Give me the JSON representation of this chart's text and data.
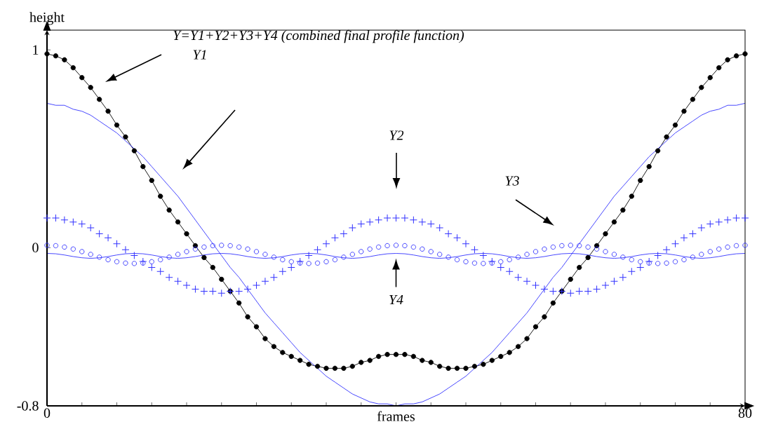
{
  "chart_data": {
    "type": "line",
    "xlabel": "frames",
    "ylabel": "height",
    "xlim": [
      0,
      80
    ],
    "ylim": [
      -0.8,
      1.1
    ],
    "xticks": [
      0,
      {
        "value": 4,
        "label": null
      },
      {
        "value": 8,
        "label": null
      },
      {
        "value": 12,
        "label": null
      },
      {
        "value": 16,
        "label": null
      },
      {
        "value": 20,
        "label": null
      },
      {
        "value": 24,
        "label": null
      },
      {
        "value": 28,
        "label": null
      },
      {
        "value": 32,
        "label": null
      },
      {
        "value": 36,
        "label": null
      },
      {
        "value": 40,
        "label": null
      },
      {
        "value": 44,
        "label": null
      },
      {
        "value": 48,
        "label": null
      },
      {
        "value": 52,
        "label": null
      },
      {
        "value": 56,
        "label": null
      },
      {
        "value": 60,
        "label": null
      },
      {
        "value": 64,
        "label": null
      },
      {
        "value": 68,
        "label": null
      },
      {
        "value": 72,
        "label": null
      },
      {
        "value": 76,
        "label": null
      },
      80
    ],
    "yticks": [
      -0.8,
      0,
      1
    ],
    "x": [
      0,
      1,
      2,
      3,
      4,
      5,
      6,
      7,
      8,
      9,
      10,
      11,
      12,
      13,
      14,
      15,
      16,
      17,
      18,
      19,
      20,
      21,
      22,
      23,
      24,
      25,
      26,
      27,
      28,
      29,
      30,
      31,
      32,
      33,
      34,
      35,
      36,
      37,
      38,
      39,
      40,
      41,
      42,
      43,
      44,
      45,
      46,
      47,
      48,
      49,
      50,
      51,
      52,
      53,
      54,
      55,
      56,
      57,
      58,
      59,
      60,
      61,
      62,
      63,
      64,
      65,
      66,
      67,
      68,
      69,
      70,
      71,
      72,
      73,
      74,
      75,
      76,
      77,
      78,
      79,
      80
    ],
    "series": [
      {
        "type": "line",
        "color": "#000000",
        "marker": "circle",
        "values": [
          0.98,
          0.97,
          0.95,
          0.91,
          0.86,
          0.81,
          0.75,
          0.69,
          0.62,
          0.56,
          0.49,
          0.41,
          0.34,
          0.26,
          0.19,
          0.13,
          0.07,
          0.01,
          -0.05,
          -0.1,
          -0.16,
          -0.22,
          -0.28,
          -0.35,
          -0.4,
          -0.46,
          -0.5,
          -0.53,
          -0.55,
          -0.57,
          -0.59,
          -0.6,
          -0.61,
          -0.61,
          -0.61,
          -0.6,
          -0.58,
          -0.57,
          -0.55,
          -0.54,
          -0.54,
          -0.54,
          -0.55,
          -0.57,
          -0.58,
          -0.6,
          -0.61,
          -0.61,
          -0.61,
          -0.6,
          -0.59,
          -0.57,
          -0.55,
          -0.53,
          -0.5,
          -0.46,
          -0.4,
          -0.35,
          -0.28,
          -0.22,
          -0.16,
          -0.1,
          -0.05,
          0.01,
          0.07,
          0.13,
          0.19,
          0.26,
          0.34,
          0.41,
          0.49,
          0.56,
          0.62,
          0.69,
          0.75,
          0.81,
          0.86,
          0.91,
          0.95,
          0.97,
          0.98
        ]
      },
      {
        "type": "line",
        "color": "#3333ff",
        "marker": "none",
        "values": [
          0.73,
          0.72,
          0.72,
          0.7,
          0.69,
          0.67,
          0.64,
          0.61,
          0.58,
          0.54,
          0.5,
          0.46,
          0.41,
          0.36,
          0.31,
          0.26,
          0.2,
          0.14,
          0.08,
          0.02,
          -0.04,
          -0.1,
          -0.15,
          -0.21,
          -0.27,
          -0.33,
          -0.38,
          -0.43,
          -0.48,
          -0.53,
          -0.57,
          -0.61,
          -0.65,
          -0.68,
          -0.71,
          -0.74,
          -0.76,
          -0.78,
          -0.79,
          -0.79,
          -0.8,
          -0.79,
          -0.79,
          -0.78,
          -0.76,
          -0.74,
          -0.71,
          -0.68,
          -0.65,
          -0.61,
          -0.57,
          -0.53,
          -0.48,
          -0.43,
          -0.38,
          -0.33,
          -0.27,
          -0.21,
          -0.15,
          -0.1,
          -0.04,
          0.02,
          0.08,
          0.14,
          0.2,
          0.26,
          0.31,
          0.36,
          0.41,
          0.46,
          0.5,
          0.54,
          0.58,
          0.61,
          0.64,
          0.67,
          0.69,
          0.7,
          0.72,
          0.72,
          0.73
        ]
      },
      {
        "type": "scatter",
        "color": "#3333ff",
        "marker": "cross",
        "values": [
          0.15,
          0.15,
          0.14,
          0.13,
          0.12,
          0.1,
          0.07,
          0.05,
          0.02,
          -0.01,
          -0.04,
          -0.07,
          -0.1,
          -0.12,
          -0.15,
          -0.17,
          -0.19,
          -0.21,
          -0.22,
          -0.22,
          -0.23,
          -0.22,
          -0.22,
          -0.21,
          -0.19,
          -0.17,
          -0.15,
          -0.12,
          -0.1,
          -0.07,
          -0.04,
          -0.01,
          0.02,
          0.05,
          0.07,
          0.1,
          0.12,
          0.13,
          0.14,
          0.15,
          0.15,
          0.15,
          0.14,
          0.13,
          0.12,
          0.1,
          0.07,
          0.05,
          0.02,
          -0.01,
          -0.04,
          -0.07,
          -0.1,
          -0.12,
          -0.15,
          -0.17,
          -0.19,
          -0.21,
          -0.22,
          -0.22,
          -0.23,
          -0.22,
          -0.22,
          -0.21,
          -0.19,
          -0.17,
          -0.15,
          -0.12,
          -0.1,
          -0.07,
          -0.04,
          -0.01,
          0.02,
          0.05,
          0.07,
          0.1,
          0.12,
          0.13,
          0.14,
          0.15,
          0.15
        ]
      },
      {
        "type": "scatter",
        "color": "#3333ff",
        "marker": "circle",
        "values": [
          0.012,
          0.01,
          0.003,
          -0.007,
          -0.02,
          -0.034,
          -0.048,
          -0.061,
          -0.071,
          -0.078,
          -0.08,
          -0.078,
          -0.071,
          -0.061,
          -0.048,
          -0.034,
          -0.02,
          -0.007,
          0.003,
          0.01,
          0.012,
          0.01,
          0.003,
          -0.007,
          -0.02,
          -0.034,
          -0.048,
          -0.061,
          -0.071,
          -0.078,
          -0.08,
          -0.078,
          -0.071,
          -0.061,
          -0.048,
          -0.034,
          -0.02,
          -0.007,
          0.003,
          0.01,
          0.012,
          0.01,
          0.003,
          -0.007,
          -0.02,
          -0.034,
          -0.048,
          -0.061,
          -0.071,
          -0.078,
          -0.08,
          -0.078,
          -0.071,
          -0.061,
          -0.048,
          -0.034,
          -0.02,
          -0.007,
          0.003,
          0.01,
          0.012,
          0.01,
          0.003,
          -0.007,
          -0.02,
          -0.034,
          -0.048,
          -0.061,
          -0.071,
          -0.078,
          -0.08,
          -0.078,
          -0.071,
          -0.061,
          -0.048,
          -0.034,
          -0.02,
          -0.007,
          0.003,
          0.01,
          0.012
        ]
      },
      {
        "type": "line",
        "color": "#3333ff",
        "marker": "none",
        "values": [
          -0.029,
          -0.031,
          -0.037,
          -0.045,
          -0.051,
          -0.054,
          -0.051,
          -0.045,
          -0.037,
          -0.031,
          -0.029,
          -0.031,
          -0.037,
          -0.045,
          -0.051,
          -0.054,
          -0.051,
          -0.045,
          -0.037,
          -0.031,
          -0.029,
          -0.031,
          -0.037,
          -0.045,
          -0.051,
          -0.054,
          -0.051,
          -0.045,
          -0.037,
          -0.031,
          -0.029,
          -0.031,
          -0.037,
          -0.045,
          -0.051,
          -0.054,
          -0.051,
          -0.045,
          -0.037,
          -0.031,
          -0.029,
          -0.031,
          -0.037,
          -0.045,
          -0.051,
          -0.054,
          -0.051,
          -0.045,
          -0.037,
          -0.031,
          -0.029,
          -0.031,
          -0.037,
          -0.045,
          -0.051,
          -0.054,
          -0.051,
          -0.045,
          -0.037,
          -0.031,
          -0.029,
          -0.031,
          -0.037,
          -0.045,
          -0.051,
          -0.054,
          -0.051,
          -0.045,
          -0.037,
          -0.031,
          -0.029,
          -0.031,
          -0.037,
          -0.045,
          -0.051,
          -0.054,
          -0.051,
          -0.045,
          -0.037,
          -0.031,
          -0.029
        ]
      }
    ],
    "annotations": [
      "Y=Y1+Y2+Y3+Y4 (combined final profile function)",
      "Y1",
      "Y2",
      "Y3",
      {
        "text": "Y4",
        "x": 40,
        "y": -0.029
      }
    ]
  }
}
